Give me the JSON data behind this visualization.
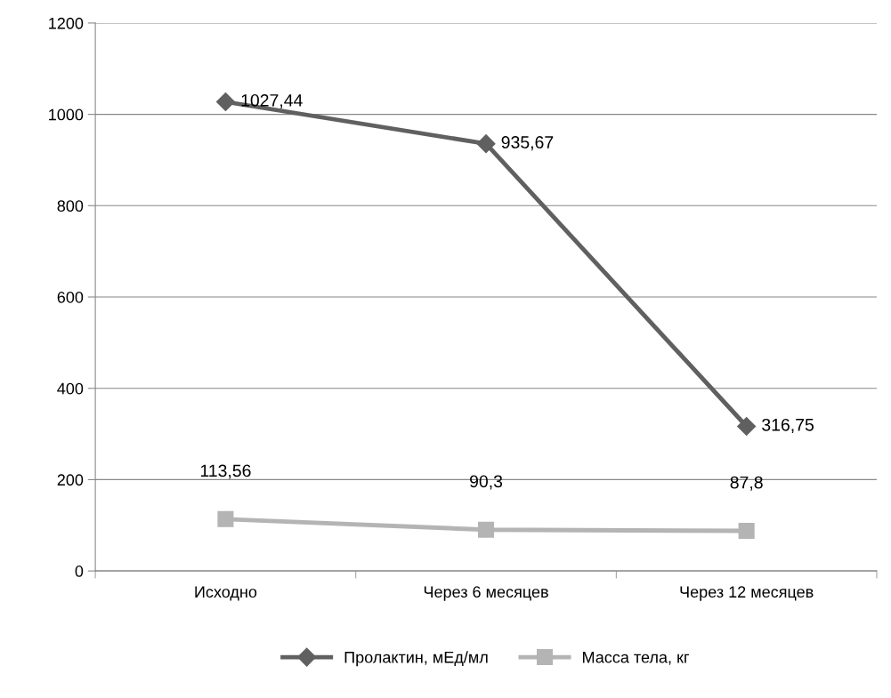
{
  "chart_data": {
    "type": "line",
    "categories": [
      "Исходно",
      "Через 6 месяцев",
      "Через 12 месяцев"
    ],
    "series": [
      {
        "name": "Пролактин, мЕд/мл",
        "color": "#606060",
        "marker": "diamond",
        "values": [
          1027.44,
          935.67,
          316.75
        ],
        "value_labels": [
          "1027,44",
          "935,67",
          "316,75"
        ]
      },
      {
        "name": "Масса тела, кг",
        "color": "#b4b4b4",
        "marker": "square",
        "values": [
          113.56,
          90.3,
          87.8
        ],
        "value_labels": [
          "113,56",
          "90,3",
          "87,8"
        ]
      }
    ],
    "ylim": [
      0,
      1200
    ],
    "yticks": [
      0,
      200,
      400,
      600,
      800,
      1000,
      1200
    ],
    "grid": "y",
    "legend": "bottom",
    "line_style": "solid"
  }
}
